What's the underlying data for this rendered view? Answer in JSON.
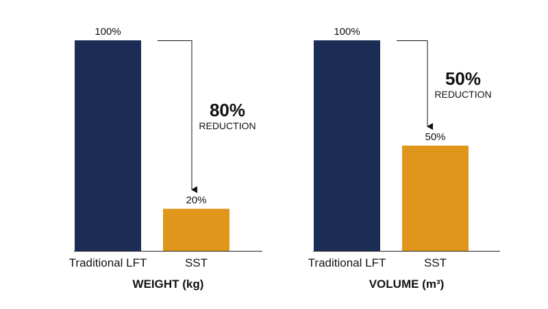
{
  "colors": {
    "primary_bar": "#1b2d55",
    "secondary_bar": "#e0961a",
    "text": "#111111",
    "axis": "#222222",
    "background": "#ffffff"
  },
  "chart_data": [
    {
      "type": "bar",
      "title": "WEIGHT (kg)",
      "categories": [
        "Traditional LFT",
        "SST"
      ],
      "values": [
        100,
        20
      ],
      "value_labels": [
        "100%",
        "20%"
      ],
      "ylim": [
        0,
        100
      ],
      "grid": false,
      "annotation": {
        "value": "80%",
        "text": "REDUCTION",
        "from": "Traditional LFT",
        "to": "SST"
      }
    },
    {
      "type": "bar",
      "title": "VOLUME (m³)",
      "categories": [
        "Traditional LFT",
        "SST"
      ],
      "values": [
        100,
        50
      ],
      "value_labels": [
        "100%",
        "50%"
      ],
      "ylim": [
        0,
        100
      ],
      "grid": false,
      "annotation": {
        "value": "50%",
        "text": "REDUCTION",
        "from": "Traditional LFT",
        "to": "SST"
      }
    }
  ]
}
